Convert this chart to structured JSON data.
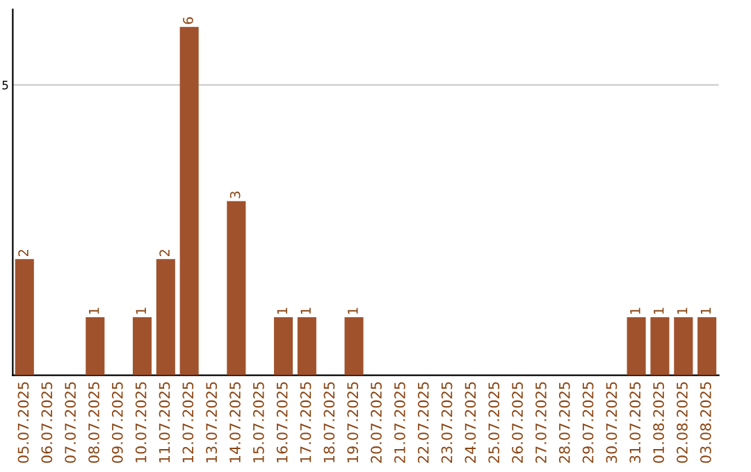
{
  "chart_data": {
    "type": "bar",
    "categories": [
      "05.07.2025",
      "06.07.2025",
      "07.07.2025",
      "08.07.2025",
      "09.07.2025",
      "10.07.2025",
      "11.07.2025",
      "12.07.2025",
      "13.07.2025",
      "14.07.2025",
      "15.07.2025",
      "16.07.2025",
      "17.07.2025",
      "18.07.2025",
      "19.07.2025",
      "20.07.2025",
      "21.07.2025",
      "22.07.2025",
      "23.07.2025",
      "24.07.2025",
      "25.07.2025",
      "26.07.2025",
      "27.07.2025",
      "28.07.2025",
      "29.07.2025",
      "30.07.2025",
      "31.07.2025",
      "01.08.2025",
      "02.08.2025",
      "03.08.2025"
    ],
    "values": [
      2,
      0,
      0,
      1,
      0,
      1,
      2,
      6,
      0,
      3,
      0,
      1,
      1,
      0,
      1,
      0,
      0,
      0,
      0,
      0,
      0,
      0,
      0,
      0,
      0,
      0,
      1,
      1,
      1,
      1
    ],
    "value_labels": [
      "2",
      null,
      null,
      "1",
      null,
      "1",
      "2",
      "6",
      null,
      "3",
      null,
      "1",
      "1",
      null,
      "1",
      null,
      null,
      null,
      null,
      null,
      null,
      null,
      null,
      null,
      null,
      null,
      "1",
      "1",
      "1",
      "1"
    ],
    "color": "#a0522d",
    "ylim": [
      0,
      6.3
    ],
    "yticks": [
      5
    ],
    "grid": "y"
  }
}
